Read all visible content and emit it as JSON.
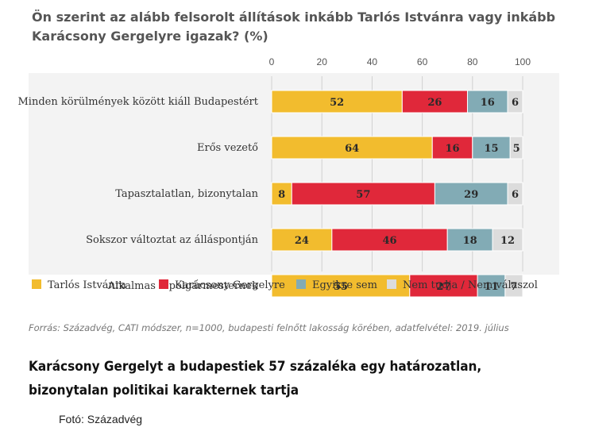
{
  "chart_data": {
    "type": "bar",
    "orientation": "horizontal",
    "stacked": true,
    "title": "Ön szerint az alább felsorolt állítások inkább Tarlós Istvánra vagy inkább Karácsony Gergelyre igazak? (%)",
    "xlim": [
      0,
      100
    ],
    "xticks": [
      0,
      20,
      40,
      60,
      80,
      100
    ],
    "categories": [
      "Minden körülmények között kiáll Budapestért",
      "Erős vezető",
      "Tapasztalatlan, bizonytalan",
      "Sokszor változtat az álláspontján",
      "Alkalmas főpolgármesternek"
    ],
    "series": [
      {
        "name": "Tarlós Istvánra",
        "color": "#f2bc2e",
        "values": [
          52,
          64,
          8,
          24,
          55
        ]
      },
      {
        "name": "Karácsony Gergelyre",
        "color": "#e0283a",
        "values": [
          26,
          16,
          57,
          46,
          27
        ]
      },
      {
        "name": "Egyikre sem",
        "color": "#82abb5",
        "values": [
          16,
          15,
          29,
          18,
          11
        ]
      },
      {
        "name": "Nem tudja / Nem válaszol",
        "color": "#dcdcdc",
        "values": [
          6,
          5,
          6,
          12,
          7
        ]
      }
    ],
    "legend_position": "bottom",
    "grid": true
  },
  "source_note": "Forrás: Századvég, CATI módszer, n=1000, budapesti felnőtt lakosság körében, adatfelvétel: 2019. július",
  "caption": "Karácsony Gergelyt a budapestiek 57 százaléka egy határozatlan, bizonytalan politikai karakternek tartja",
  "photo_credit": "Fotó: Századvég"
}
